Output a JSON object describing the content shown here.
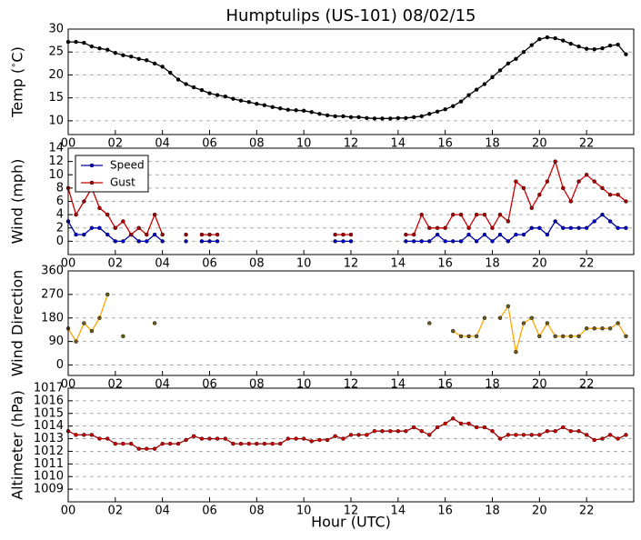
{
  "chart_data": [
    {
      "type": "line",
      "title": "Humptulips (US-101) 08/02/15",
      "ylabel": "Temp ($^\\circ$C)",
      "xlim": [
        0,
        24
      ],
      "xticks": [
        {
          "value": 0,
          "label": "00"
        },
        {
          "value": 2,
          "label": "02"
        },
        {
          "value": 4,
          "label": "04"
        },
        {
          "value": 6,
          "label": "06"
        },
        {
          "value": 8,
          "label": "08"
        },
        {
          "value": 10,
          "label": "10"
        },
        {
          "value": 12,
          "label": "12"
        },
        {
          "value": 14,
          "label": "14"
        },
        {
          "value": 16,
          "label": "16"
        },
        {
          "value": 18,
          "label": "18"
        },
        {
          "value": 20,
          "label": "20"
        },
        {
          "value": 22,
          "label": "22"
        }
      ],
      "ylim": [
        7,
        30
      ],
      "yticks": [
        10,
        15,
        20,
        25,
        30
      ],
      "grid": true,
      "x": [
        0,
        0.33,
        0.67,
        1,
        1.33,
        1.67,
        2,
        2.33,
        2.67,
        3,
        3.33,
        3.67,
        4,
        4.33,
        4.67,
        5,
        5.33,
        5.67,
        6,
        6.33,
        6.67,
        7,
        7.33,
        7.67,
        8,
        8.33,
        8.67,
        9,
        9.33,
        9.67,
        10,
        10.33,
        10.67,
        11,
        11.33,
        11.67,
        12,
        12.33,
        12.67,
        13,
        13.33,
        13.67,
        14,
        14.33,
        14.67,
        15,
        15.33,
        15.67,
        16,
        16.33,
        16.67,
        17,
        17.33,
        17.67,
        18,
        18.33,
        18.67,
        19,
        19.33,
        19.67,
        20,
        20.33,
        20.67,
        21,
        21.33,
        21.67,
        22,
        22.33,
        22.67,
        23,
        23.33,
        23.67
      ],
      "series": [
        {
          "color": "#000000",
          "marker": "#000000",
          "values": [
            27.2,
            27.2,
            27.0,
            26.2,
            25.8,
            25.5,
            24.8,
            24.3,
            24.0,
            23.5,
            23.2,
            22.5,
            21.8,
            20.5,
            19.0,
            18.0,
            17.3,
            16.7,
            16.0,
            15.6,
            15.3,
            14.8,
            14.4,
            14.1,
            13.7,
            13.4,
            13.0,
            12.7,
            12.4,
            12.3,
            12.2,
            11.9,
            11.5,
            11.2,
            11.0,
            11.0,
            10.8,
            10.8,
            10.6,
            10.5,
            10.5,
            10.5,
            10.6,
            10.6,
            10.8,
            11.0,
            11.5,
            12.0,
            12.5,
            13.2,
            14.2,
            15.6,
            16.8,
            18.0,
            19.5,
            21.0,
            22.5,
            23.5,
            25.0,
            26.5,
            27.8,
            28.2,
            28.0,
            27.5,
            26.8,
            26.2,
            25.7,
            25.6,
            25.8,
            26.4,
            26.6,
            24.5
          ]
        }
      ]
    },
    {
      "type": "line",
      "ylabel": "Wind (mph)",
      "legend": "upper left",
      "xlim": [
        0,
        24
      ],
      "xticks": [
        {
          "value": 0,
          "label": "00"
        },
        {
          "value": 2,
          "label": "02"
        },
        {
          "value": 4,
          "label": "04"
        },
        {
          "value": 6,
          "label": "06"
        },
        {
          "value": 8,
          "label": "08"
        },
        {
          "value": 10,
          "label": "10"
        },
        {
          "value": 12,
          "label": "12"
        },
        {
          "value": 14,
          "label": "14"
        },
        {
          "value": 16,
          "label": "16"
        },
        {
          "value": 18,
          "label": "18"
        },
        {
          "value": 20,
          "label": "20"
        },
        {
          "value": 22,
          "label": "22"
        }
      ],
      "ylim": [
        -2,
        14
      ],
      "yticks": [
        0,
        2,
        4,
        6,
        8,
        10,
        12,
        14
      ],
      "grid": true,
      "x": [
        0,
        0.33,
        0.67,
        1,
        1.33,
        1.67,
        2,
        2.33,
        2.67,
        3,
        3.33,
        3.67,
        4,
        4.33,
        4.67,
        5,
        5.33,
        5.67,
        6,
        6.33,
        6.67,
        7,
        7.33,
        7.67,
        8,
        8.33,
        8.67,
        9,
        9.33,
        9.67,
        10,
        10.33,
        10.67,
        11,
        11.33,
        11.67,
        12,
        12.33,
        12.67,
        13,
        13.33,
        13.67,
        14,
        14.33,
        14.67,
        15,
        15.33,
        15.67,
        16,
        16.33,
        16.67,
        17,
        17.33,
        17.67,
        18,
        18.33,
        18.67,
        19,
        19.33,
        19.67,
        20,
        20.33,
        20.67,
        21,
        21.33,
        21.67,
        22,
        22.33,
        22.67,
        23,
        23.33,
        23.67
      ],
      "series": [
        {
          "name": "Speed",
          "color": "#0000aa",
          "marker": "#0000cc",
          "values": [
            3,
            1,
            1,
            2,
            2,
            1,
            0,
            0,
            1,
            0,
            0,
            1,
            0,
            null,
            null,
            0,
            null,
            0,
            0,
            0,
            null,
            null,
            null,
            null,
            null,
            null,
            null,
            null,
            null,
            null,
            null,
            null,
            null,
            null,
            0,
            0,
            0,
            null,
            null,
            null,
            null,
            null,
            null,
            0,
            0,
            0,
            0,
            1,
            0,
            0,
            0,
            1,
            0,
            1,
            0,
            1,
            0,
            1,
            1,
            2,
            2,
            1,
            3,
            2,
            2,
            2,
            2,
            3,
            4,
            3,
            2,
            2
          ]
        },
        {
          "name": "Gust",
          "color": "#cc0000",
          "marker": "#aa0000",
          "values": [
            8,
            4,
            6,
            8,
            5,
            4,
            2,
            3,
            1,
            2,
            1,
            4,
            1,
            null,
            null,
            1,
            null,
            1,
            1,
            1,
            null,
            null,
            null,
            null,
            null,
            null,
            null,
            null,
            null,
            null,
            null,
            null,
            null,
            null,
            1,
            1,
            1,
            null,
            null,
            null,
            null,
            null,
            null,
            1,
            1,
            4,
            2,
            2,
            2,
            4,
            4,
            2,
            4,
            4,
            2,
            4,
            3,
            9,
            8,
            5,
            7,
            9,
            12,
            8,
            6,
            9,
            10,
            9,
            8,
            7,
            7,
            6
          ]
        }
      ]
    },
    {
      "type": "line",
      "ylabel": "Wind Direction",
      "xlim": [
        0,
        24
      ],
      "xticks": [
        {
          "value": 0,
          "label": "00"
        },
        {
          "value": 2,
          "label": "02"
        },
        {
          "value": 4,
          "label": "04"
        },
        {
          "value": 6,
          "label": "06"
        },
        {
          "value": 8,
          "label": "08"
        },
        {
          "value": 10,
          "label": "10"
        },
        {
          "value": 12,
          "label": "12"
        },
        {
          "value": 14,
          "label": "14"
        },
        {
          "value": 16,
          "label": "16"
        },
        {
          "value": 18,
          "label": "18"
        },
        {
          "value": 20,
          "label": "20"
        },
        {
          "value": 22,
          "label": "22"
        }
      ],
      "ylim": [
        -40,
        360
      ],
      "yticks": [
        0,
        90,
        180,
        270,
        360
      ],
      "grid": true,
      "x": [
        0,
        0.33,
        0.67,
        1,
        1.33,
        1.67,
        2,
        2.33,
        2.67,
        3,
        3.33,
        3.67,
        4,
        4.33,
        4.67,
        5,
        5.33,
        5.67,
        6,
        6.33,
        6.67,
        7,
        7.33,
        7.67,
        8,
        8.33,
        8.67,
        9,
        9.33,
        9.67,
        10,
        10.33,
        10.67,
        11,
        11.33,
        11.67,
        12,
        12.33,
        12.67,
        13,
        13.33,
        13.67,
        14,
        14.33,
        14.67,
        15,
        15.33,
        15.67,
        16,
        16.33,
        16.67,
        17,
        17.33,
        17.67,
        18,
        18.33,
        18.67,
        19,
        19.33,
        19.67,
        20,
        20.33,
        20.67,
        21,
        21.33,
        21.67,
        22,
        22.33,
        22.67,
        23,
        23.33,
        23.67
      ],
      "series": [
        {
          "color": "#ffa500",
          "marker": "#6b5a1a",
          "values": [
            140,
            90,
            160,
            130,
            180,
            270,
            null,
            110,
            null,
            null,
            null,
            160,
            null,
            null,
            null,
            null,
            null,
            null,
            null,
            null,
            null,
            null,
            null,
            null,
            null,
            null,
            null,
            null,
            null,
            null,
            null,
            null,
            null,
            null,
            null,
            null,
            null,
            null,
            null,
            null,
            null,
            null,
            null,
            null,
            null,
            null,
            160,
            null,
            null,
            130,
            110,
            110,
            110,
            180,
            null,
            180,
            225,
            50,
            160,
            180,
            110,
            160,
            110,
            110,
            110,
            110,
            140,
            140,
            140,
            140,
            160,
            110
          ]
        }
      ]
    },
    {
      "type": "line",
      "ylabel": "Altimeter (hPa)",
      "xlabel": "Hour (UTC)",
      "xlim": [
        0,
        24
      ],
      "xticks": [
        {
          "value": 0,
          "label": "00"
        },
        {
          "value": 2,
          "label": "02"
        },
        {
          "value": 4,
          "label": "04"
        },
        {
          "value": 6,
          "label": "06"
        },
        {
          "value": 8,
          "label": "08"
        },
        {
          "value": 10,
          "label": "10"
        },
        {
          "value": 12,
          "label": "12"
        },
        {
          "value": 14,
          "label": "14"
        },
        {
          "value": 16,
          "label": "16"
        },
        {
          "value": 18,
          "label": "18"
        },
        {
          "value": 20,
          "label": "20"
        },
        {
          "value": 22,
          "label": "22"
        }
      ],
      "ylim": [
        1008,
        1017
      ],
      "yticks": [
        1009,
        1010,
        1011,
        1012,
        1013,
        1014,
        1015,
        1016,
        1017
      ],
      "grid": true,
      "x": [
        0,
        0.33,
        0.67,
        1,
        1.33,
        1.67,
        2,
        2.33,
        2.67,
        3,
        3.33,
        3.67,
        4,
        4.33,
        4.67,
        5,
        5.33,
        5.67,
        6,
        6.33,
        6.67,
        7,
        7.33,
        7.67,
        8,
        8.33,
        8.67,
        9,
        9.33,
        9.67,
        10,
        10.33,
        10.67,
        11,
        11.33,
        11.67,
        12,
        12.33,
        12.67,
        13,
        13.33,
        13.67,
        14,
        14.33,
        14.67,
        15,
        15.33,
        15.67,
        16,
        16.33,
        16.67,
        17,
        17.33,
        17.67,
        18,
        18.33,
        18.67,
        19,
        19.33,
        19.67,
        20,
        20.33,
        20.67,
        21,
        21.33,
        21.67,
        22,
        22.33,
        22.67,
        23,
        23.33,
        23.67
      ],
      "series": [
        {
          "color": "#a00000",
          "marker": "#d00000",
          "values": [
            1013.6,
            1013.3,
            1013.3,
            1013.3,
            1013.0,
            1013.0,
            1012.6,
            1012.6,
            1012.6,
            1012.2,
            1012.2,
            1012.2,
            1012.6,
            1012.6,
            1012.6,
            1012.9,
            1013.2,
            1013.0,
            1013.0,
            1013.0,
            1013.0,
            1012.6,
            1012.6,
            1012.6,
            1012.6,
            1012.6,
            1012.6,
            1012.6,
            1013.0,
            1013.0,
            1013.0,
            1012.8,
            1012.9,
            1012.9,
            1013.2,
            1013.0,
            1013.3,
            1013.3,
            1013.3,
            1013.6,
            1013.6,
            1013.6,
            1013.6,
            1013.6,
            1013.9,
            1013.6,
            1013.3,
            1013.9,
            1014.2,
            1014.6,
            1014.2,
            1014.2,
            1013.9,
            1013.9,
            1013.6,
            1013.0,
            1013.3,
            1013.3,
            1013.3,
            1013.3,
            1013.3,
            1013.6,
            1013.6,
            1013.9,
            1013.6,
            1013.6,
            1013.3,
            1012.9,
            1013.0,
            1013.3,
            1013.0,
            1013.3
          ]
        }
      ]
    }
  ]
}
